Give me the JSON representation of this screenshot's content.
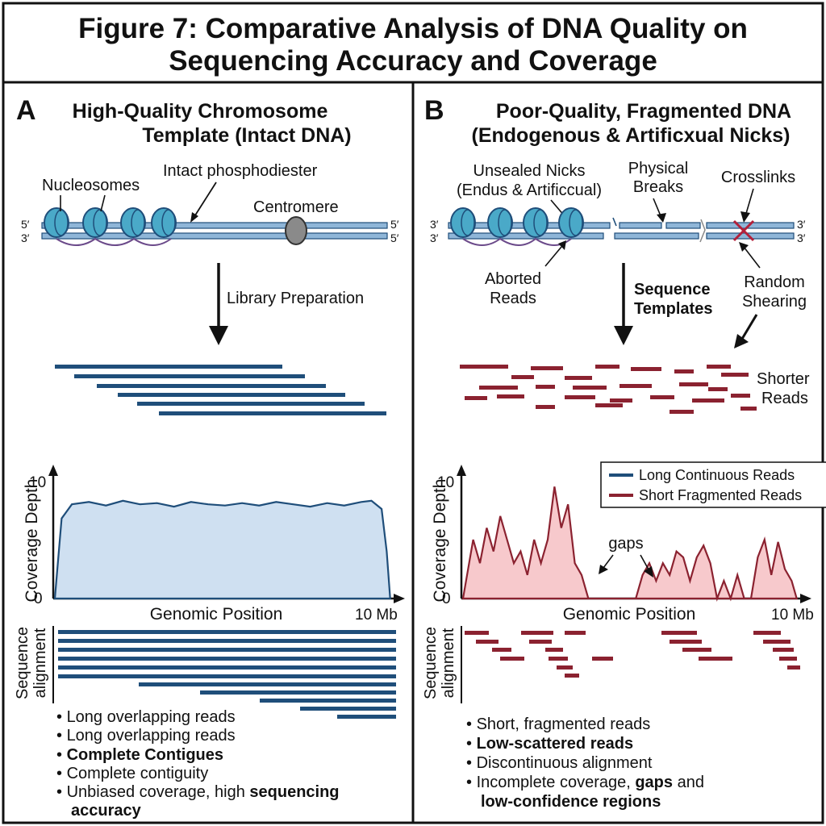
{
  "title": {
    "line1": "Figure 7: Comparative Analysis of DNA Quality on",
    "line2": "Sequencing Accuracy and Coverage"
  },
  "colors": {
    "blue": "#1f4e7a",
    "red": "#8b2230",
    "blue_fill": "#cfe0f1",
    "red_fill": "#f7c9cc",
    "nucleosome": "#4aa9c8",
    "centromere": "#8a8a8a"
  },
  "panel_a": {
    "letter": "A",
    "title_line1": "High-Quality Chromosome",
    "title_line2": "Template (Intact DNA)",
    "labels": {
      "nucleosomes": "Nucleosomes",
      "intact": "Intact phosphodiester",
      "centromere": "Centromere",
      "library": "Library Preparation",
      "five_prime_left": "5′",
      "three_prime_left": "3′",
      "five_prime_right_top": "5′",
      "five_prime_right_bottom": "5′"
    },
    "bullets": [
      {
        "pre": "Long overlapping reads",
        "bold": "",
        "post": ""
      },
      {
        "pre": "Long overlapping reads",
        "bold": "",
        "post": ""
      },
      {
        "pre": "",
        "bold": "Complete Contigues",
        "post": ""
      },
      {
        "pre": "Complete contiguity",
        "bold": "",
        "post": ""
      },
      {
        "pre": "Unbiased coverage, high ",
        "bold": "sequencing",
        "post": ""
      },
      {
        "pre": "",
        "bold": "accuracy",
        "post": "",
        "continuation": true
      }
    ]
  },
  "panel_b": {
    "letter": "B",
    "title_line1": "Poor-Quality, Fragmented DNA",
    "title_line2": "(Endogenous & Artificxual Nicks)",
    "labels": {
      "nicks_line1": "Unsealed Nicks",
      "nicks_line2": "(Endus & Artificcual)",
      "breaks_line1": "Physical",
      "breaks_line2": "Breaks",
      "crosslinks": "Crosslinks",
      "aborted_line1": "Aborted",
      "aborted_line2": "Reads",
      "seq_templates_line1": "Sequence",
      "seq_templates_line2": "Templates",
      "random_line1": "Random",
      "random_line2": "Shearing",
      "shorter_line1": "Shorter",
      "shorter_line2": "Reads",
      "gaps": "gaps",
      "three_prime_left_top": "3′",
      "three_prime_left_bottom": "3′",
      "three_prime_right_top": "3′",
      "three_prime_right_bottom": "3′"
    },
    "bullets": [
      {
        "pre": "Short, fragmented reads",
        "bold": "",
        "post": ""
      },
      {
        "pre": "",
        "bold": "Low-scattered reads",
        "post": ""
      },
      {
        "pre": "Discontinuous alignment",
        "bold": "",
        "post": ""
      },
      {
        "pre": "Incomplete coverage, ",
        "bold": "gaps",
        "post": " and"
      },
      {
        "pre": "",
        "bold": "low-confidence regions",
        "post": "",
        "continuation": true
      }
    ]
  },
  "chart_data": [
    {
      "type": "area",
      "panel": "A",
      "xlabel": "Genomic Position",
      "ylabel": "Coverage Depth",
      "alignment_label": "Sequence alignment",
      "y_ticks": [
        "0",
        "10"
      ],
      "x_end_label": "10 Mb",
      "ylim": [
        0,
        10
      ],
      "xlim": [
        0,
        10
      ],
      "series": [
        {
          "color": "#1f4e7a",
          "x": [
            0,
            0.2,
            0.5,
            1,
            1.5,
            2,
            2.5,
            3,
            3.5,
            4,
            4.5,
            5,
            5.5,
            6,
            6.5,
            7,
            7.5,
            8,
            8.5,
            9,
            9.3,
            9.6,
            9.75,
            9.85
          ],
          "y": [
            0,
            6.8,
            8.0,
            8.2,
            7.9,
            8.3,
            8.0,
            8.1,
            7.8,
            8.2,
            8.0,
            7.9,
            8.1,
            7.9,
            8.2,
            8.0,
            7.8,
            8.1,
            7.9,
            8.2,
            8.3,
            7.6,
            4.0,
            0
          ]
        }
      ]
    },
    {
      "type": "area",
      "panel": "B",
      "xlabel": "Genomic Position",
      "ylabel": "Coverage Depth",
      "alignment_label": "Sequence alignment",
      "y_ticks": [
        "0",
        "10"
      ],
      "x_end_label": "10 Mb",
      "ylim": [
        0,
        10
      ],
      "xlim": [
        0,
        10
      ],
      "legend": [
        {
          "name": "Long Continuous Reads",
          "color": "#1f4e7a"
        },
        {
          "name": "Short Fragmented Reads",
          "color": "#8b2230"
        }
      ],
      "legend_position": "top-right",
      "series": [
        {
          "color": "#8b2230",
          "x": [
            0,
            0.3,
            0.5,
            0.7,
            0.9,
            1.1,
            1.3,
            1.5,
            1.7,
            1.9,
            2.1,
            2.3,
            2.5,
            2.7,
            2.9,
            3.1,
            3.3,
            3.5,
            3.7,
            3.9,
            4.1,
            4.3,
            4.5,
            4.7,
            4.9,
            5.1,
            5.3,
            5.5,
            5.7,
            5.9,
            6.1,
            6.3,
            6.5,
            6.7,
            6.9,
            7.1,
            7.3,
            7.5,
            7.7,
            7.9,
            8.1,
            8.3,
            8.5,
            8.7,
            8.9,
            9.1,
            9.3,
            9.5,
            9.7,
            9.85
          ],
          "y": [
            0,
            5,
            3,
            6,
            4,
            7,
            5,
            3,
            4,
            2,
            5,
            3,
            5,
            9.5,
            6,
            8,
            3,
            2,
            0,
            0,
            0,
            0,
            0,
            0,
            0,
            0,
            2,
            3,
            1.5,
            3,
            2,
            4,
            3.5,
            1.5,
            3.5,
            4.5,
            3,
            0,
            1.5,
            0,
            2,
            0,
            0,
            3.5,
            5,
            2,
            4.8,
            2.5,
            1.5,
            0
          ]
        }
      ]
    }
  ]
}
